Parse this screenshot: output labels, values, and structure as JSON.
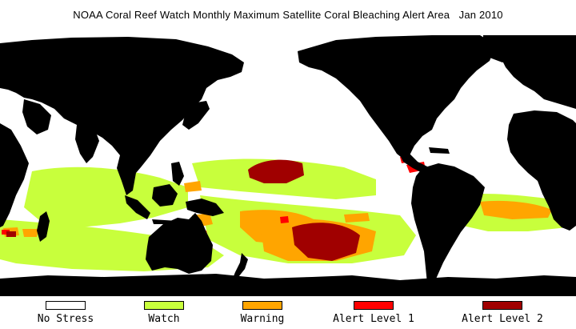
{
  "title": "NOAA Coral Reef Watch Monthly Maximum Satellite Coral Bleaching Alert Area   Jan 2010",
  "colors": {
    "land": "#000000",
    "ocean": "#ffffff"
  },
  "legend": [
    {
      "label": "No Stress",
      "color": "#ffffff"
    },
    {
      "label": "Watch",
      "color": "#c8ff3c"
    },
    {
      "label": "Warning",
      "color": "#ffa500"
    },
    {
      "label": "Alert Level 1",
      "color": "#ff0000"
    },
    {
      "label": "Alert Level 2",
      "color": "#a00000"
    }
  ]
}
